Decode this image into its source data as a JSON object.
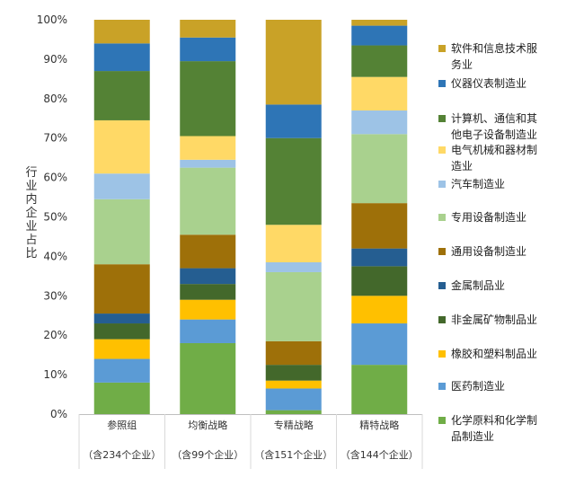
{
  "chart_data": {
    "type": "bar",
    "stacked": true,
    "percent": true,
    "ylabel": "行业内企业占比",
    "ylim": [
      0,
      100
    ],
    "yticks": [
      "0%",
      "10%",
      "20%",
      "30%",
      "40%",
      "50%",
      "60%",
      "70%",
      "80%",
      "90%",
      "100%"
    ],
    "grid": false,
    "legend_position": "right",
    "categories": [
      {
        "name": "参照组",
        "sub": "（含234个企业）"
      },
      {
        "name": "均衡战略",
        "sub": "（含99个企业）"
      },
      {
        "name": "专精战略",
        "sub": "（含151个企业）"
      },
      {
        "name": "精特战略",
        "sub": "（含144个企业）"
      }
    ],
    "series": [
      {
        "name": "化学原料和化学制品制造业",
        "legend_lines": [
          "化学原料和化学制",
          "品制造业"
        ],
        "color": "#70ad47",
        "values": [
          8.0,
          18.0,
          1.0,
          12.5
        ]
      },
      {
        "name": "医药制造业",
        "legend_lines": [
          "医药制造业"
        ],
        "color": "#5b9bd5",
        "values": [
          6.0,
          6.0,
          5.5,
          10.5
        ]
      },
      {
        "name": "橡胶和塑料制品业",
        "legend_lines": [
          "橡胶和塑料制品业"
        ],
        "color": "#ffc000",
        "values": [
          5.0,
          5.0,
          2.0,
          7.0
        ]
      },
      {
        "name": "非金属矿物制品业",
        "legend_lines": [
          "非金属矿物制品业"
        ],
        "color": "#43682b",
        "values": [
          4.0,
          4.0,
          4.0,
          7.5
        ]
      },
      {
        "name": "金属制品业",
        "legend_lines": [
          "金属制品业"
        ],
        "color": "#255e91",
        "values": [
          2.5,
          4.0,
          0,
          4.5
        ]
      },
      {
        "name": "通用设备制造业",
        "legend_lines": [
          "通用设备制造业"
        ],
        "color": "#9e7009",
        "values": [
          12.5,
          8.5,
          6.0,
          11.5
        ]
      },
      {
        "name": "专用设备制造业",
        "legend_lines": [
          "专用设备制造业"
        ],
        "color": "#a9d18e",
        "values": [
          16.5,
          17.0,
          17.5,
          17.5
        ]
      },
      {
        "name": "汽车制造业",
        "legend_lines": [
          "汽车制造业"
        ],
        "color": "#9dc3e6",
        "values": [
          6.5,
          2.0,
          2.5,
          6.0
        ]
      },
      {
        "name": "电气机械和器材制造业",
        "legend_lines": [
          "电气机械和器材制",
          "造业"
        ],
        "color": "#ffd966",
        "values": [
          13.5,
          6.0,
          9.5,
          8.5
        ]
      },
      {
        "name": "计算机、通信和其他电子设备制造业",
        "legend_lines": [
          "计算机、通信和其",
          "他电子设备制造业"
        ],
        "color": "#548235",
        "values": [
          12.5,
          19.0,
          22.0,
          8.0
        ]
      },
      {
        "name": "仪器仪表制造业",
        "legend_lines": [
          "仪器仪表制造业"
        ],
        "color": "#2e75b6",
        "values": [
          7.0,
          6.0,
          8.5,
          5.0
        ]
      },
      {
        "name": "软件和信息技术服务业",
        "legend_lines": [
          "软件和信息技术服",
          "务业"
        ],
        "color": "#c9a227",
        "values": [
          6.0,
          4.5,
          21.5,
          1.5
        ]
      }
    ]
  }
}
